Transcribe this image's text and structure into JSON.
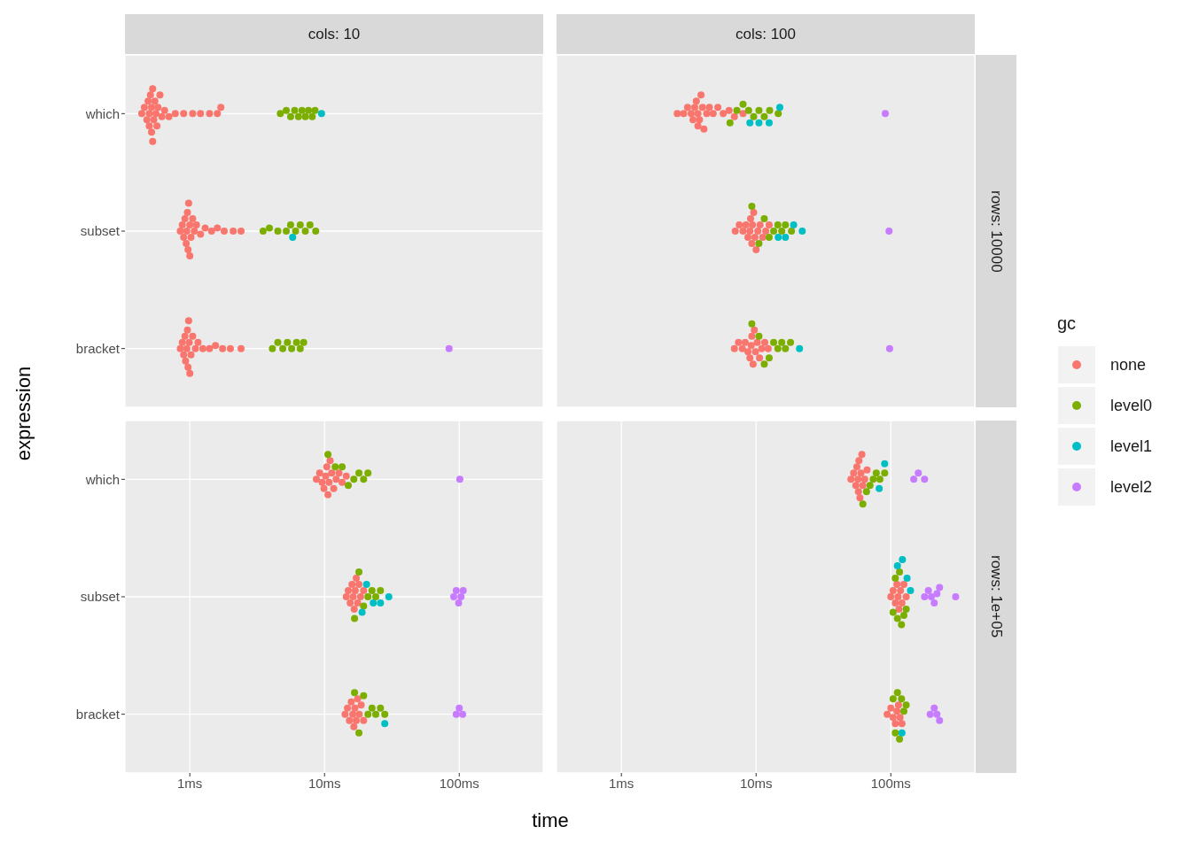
{
  "chart_data": [
    {
      "type": "scatter",
      "title": "cols: 10",
      "ylabel": "expression",
      "legend": "right",
      "legend_title": "gc",
      "orientation": "horizontal",
      "categories": [
        "which",
        "subset",
        "bracket"
      ],
      "log": "x",
      "xlim": [
        0.33,
        420
      ],
      "xticks": [
        {
          "value": 1,
          "label": null
        },
        {
          "value": 10,
          "label": null
        },
        {
          "value": 100,
          "label": null
        }
      ],
      "grid": true,
      "marker": "circle",
      "tick_labels": "y",
      "series": [
        {
          "name": "none",
          "color": "#f8766d",
          "x": [
            "which",
            "which",
            "which",
            "which",
            "which",
            "which",
            "which",
            "which",
            "which",
            "which",
            "which",
            "which",
            "which",
            "which",
            "which",
            "which",
            "which",
            "which",
            "which",
            "which",
            "which",
            "which",
            "which",
            "which",
            "which",
            "which",
            "which",
            "subset",
            "subset",
            "subset",
            "subset",
            "subset",
            "subset",
            "subset",
            "subset",
            "subset",
            "subset",
            "subset",
            "subset",
            "subset",
            "subset",
            "subset",
            "subset",
            "subset",
            "subset",
            "subset",
            "subset",
            "subset",
            "subset",
            "bracket",
            "bracket",
            "bracket",
            "bracket",
            "bracket",
            "bracket",
            "bracket",
            "bracket",
            "bracket",
            "bracket",
            "bracket",
            "bracket",
            "bracket",
            "bracket",
            "bracket",
            "bracket",
            "bracket",
            "bracket",
            "bracket",
            "bracket",
            "bracket"
          ],
          "values": [
            0.44,
            0.46,
            0.48,
            0.49,
            0.5,
            0.5,
            0.51,
            0.52,
            0.52,
            0.53,
            0.53,
            0.54,
            0.55,
            0.56,
            0.57,
            0.58,
            0.6,
            0.62,
            0.65,
            0.7,
            0.78,
            0.9,
            1.05,
            1.2,
            1.4,
            1.6,
            1.7,
            0.85,
            0.88,
            0.9,
            0.92,
            0.94,
            0.95,
            0.96,
            0.97,
            0.98,
            1,
            1,
            1.02,
            1.05,
            1.08,
            1.12,
            1.2,
            1.3,
            1.45,
            1.6,
            1.8,
            2.1,
            2.4,
            0.85,
            0.88,
            0.9,
            0.92,
            0.93,
            0.95,
            0.96,
            0.97,
            0.98,
            0.99,
            1,
            1.02,
            1.05,
            1.1,
            1.15,
            1.25,
            1.4,
            1.55,
            1.75,
            2,
            2.4
          ]
        },
        {
          "name": "level0",
          "color": "#7cae00",
          "x": [
            "which",
            "which",
            "which",
            "which",
            "which",
            "which",
            "which",
            "which",
            "which",
            "which",
            "subset",
            "subset",
            "subset",
            "subset",
            "subset",
            "subset",
            "subset",
            "subset",
            "subset",
            "subset",
            "bracket",
            "bracket",
            "bracket",
            "bracket",
            "bracket",
            "bracket",
            "bracket",
            "bracket"
          ],
          "values": [
            4.7,
            5.2,
            5.6,
            6,
            6.4,
            6.8,
            7.2,
            7.6,
            8.1,
            8.5,
            3.5,
            3.9,
            4.5,
            5.2,
            5.6,
            6.1,
            6.6,
            7.2,
            7.8,
            8.6,
            4.1,
            4.5,
            4.9,
            5.3,
            5.7,
            6.2,
            6.6,
            7
          ]
        },
        {
          "name": "level1",
          "color": "#00bfc4",
          "x": [
            "which",
            "subset"
          ],
          "values": [
            9.5,
            5.8
          ]
        },
        {
          "name": "level2",
          "color": "#c77cff",
          "x": [
            "bracket"
          ],
          "values": [
            84
          ]
        }
      ]
    },
    {
      "type": "scatter",
      "title": "cols: 100",
      "annotations": [
        "rows: 10000"
      ],
      "orientation": "horizontal",
      "categories": [
        "which",
        "subset",
        "bracket"
      ],
      "log": "x",
      "xlim": [
        0.33,
        420
      ],
      "xticks": [
        {
          "value": 1,
          "label": null
        },
        {
          "value": 10,
          "label": null
        },
        {
          "value": 100,
          "label": null
        }
      ],
      "grid": true,
      "marker": "circle",
      "tick_labels": false,
      "series": [
        {
          "color": "#f8766d",
          "x": [
            "which",
            "which",
            "which",
            "which",
            "which",
            "which",
            "which",
            "which",
            "which",
            "which",
            "which",
            "which",
            "which",
            "which",
            "which",
            "which",
            "which",
            "which",
            "which",
            "which",
            "which",
            "subset",
            "subset",
            "subset",
            "subset",
            "subset",
            "subset",
            "subset",
            "subset",
            "subset",
            "subset",
            "subset",
            "subset",
            "subset",
            "subset",
            "subset",
            "subset",
            "subset",
            "bracket",
            "bracket",
            "bracket",
            "bracket",
            "bracket",
            "bracket",
            "bracket",
            "bracket",
            "bracket",
            "bracket",
            "bracket",
            "bracket",
            "bracket",
            "bracket",
            "bracket",
            "bracket"
          ],
          "values": [
            2.6,
            2.9,
            3.1,
            3.3,
            3.4,
            3.5,
            3.6,
            3.7,
            3.7,
            3.8,
            3.9,
            4,
            4.1,
            4.3,
            4.5,
            4.8,
            5.2,
            5.7,
            6.3,
            6.9,
            8,
            7,
            7.5,
            8,
            8.4,
            8.7,
            9,
            9.1,
            9.3,
            9.4,
            9.6,
            9.8,
            10,
            10.3,
            10.7,
            11.2,
            11.8,
            12.5,
            6.9,
            7.4,
            7.9,
            8.3,
            8.7,
            9,
            9.2,
            9.3,
            9.5,
            9.7,
            9.9,
            10.2,
            10.6,
            11,
            11.6,
            12.3
          ]
        },
        {
          "color": "#7cae00",
          "x": [
            "which",
            "which",
            "which",
            "which",
            "which",
            "which",
            "which",
            "which",
            "which",
            "subset",
            "subset",
            "subset",
            "subset",
            "subset",
            "subset",
            "subset",
            "subset",
            "subset",
            "bracket",
            "bracket",
            "bracket",
            "bracket",
            "bracket",
            "bracket",
            "bracket",
            "bracket",
            "bracket"
          ],
          "values": [
            6.4,
            7.2,
            8,
            8.8,
            9.6,
            10.5,
            11.5,
            12.6,
            14.6,
            9.3,
            10.5,
            11.5,
            12.5,
            13.5,
            14.5,
            15.5,
            16.5,
            18.3,
            9.3,
            10.5,
            11.5,
            12.5,
            13.5,
            14.5,
            15.5,
            16.5,
            18
          ]
        },
        {
          "color": "#00bfc4",
          "x": [
            "which",
            "which",
            "which",
            "which",
            "subset",
            "subset",
            "subset",
            "subset",
            "bracket"
          ],
          "values": [
            9,
            10.5,
            12.5,
            15,
            14.6,
            16.5,
            19,
            22,
            21
          ]
        },
        {
          "color": "#c77cff",
          "x": [
            "which",
            "subset",
            "bracket"
          ],
          "values": [
            91,
            97,
            98
          ]
        }
      ]
    },
    {
      "type": "scatter",
      "xlabel": "time",
      "orientation": "horizontal",
      "categories": [
        "which",
        "subset",
        "bracket"
      ],
      "log": "x",
      "xlim": [
        0.33,
        420
      ],
      "xticks": [
        {
          "value": 1,
          "label": "1ms"
        },
        {
          "value": 10,
          "label": "10ms"
        },
        {
          "value": 100,
          "label": "100ms"
        }
      ],
      "grid": true,
      "marker": "circle",
      "series": [
        {
          "color": "#f8766d",
          "x": [
            "which",
            "which",
            "which",
            "which",
            "which",
            "which",
            "which",
            "which",
            "which",
            "which",
            "which",
            "which",
            "which",
            "which",
            "which",
            "subset",
            "subset",
            "subset",
            "subset",
            "subset",
            "subset",
            "subset",
            "subset",
            "subset",
            "subset",
            "subset",
            "subset",
            "bracket",
            "bracket",
            "bracket",
            "bracket",
            "bracket",
            "bracket",
            "bracket",
            "bracket",
            "bracket",
            "bracket",
            "bracket",
            "bracket"
          ],
          "values": [
            8.7,
            9.2,
            9.6,
            9.9,
            10.2,
            10.4,
            10.6,
            10.8,
            11,
            11.3,
            11.7,
            12.2,
            12.8,
            13.5,
            14.5,
            14.5,
            15,
            15.5,
            16,
            16.3,
            16.6,
            16.9,
            17.2,
            17.6,
            18,
            18.5,
            19.5,
            14.2,
            14.8,
            15.3,
            15.8,
            16.2,
            16.5,
            16.8,
            17.2,
            17.6,
            18.1,
            18.7,
            19.5
          ]
        },
        {
          "color": "#7cae00",
          "x": [
            "which",
            "which",
            "which",
            "which",
            "which",
            "which",
            "which",
            "which",
            "subset",
            "subset",
            "subset",
            "subset",
            "subset",
            "subset",
            "subset",
            "bracket",
            "bracket",
            "bracket",
            "bracket",
            "bracket",
            "bracket",
            "bracket",
            "bracket"
          ],
          "values": [
            10.6,
            12,
            13.5,
            15,
            16.5,
            18,
            19.5,
            21,
            16.7,
            18,
            19.5,
            21,
            22.5,
            24,
            26,
            16.7,
            18,
            19.5,
            21,
            22.5,
            24,
            26,
            28
          ]
        },
        {
          "color": "#00bfc4",
          "x": [
            "subset",
            "subset",
            "subset",
            "subset",
            "subset",
            "bracket"
          ],
          "values": [
            19,
            20.5,
            23,
            26,
            30,
            28
          ]
        },
        {
          "color": "#c77cff",
          "x": [
            "which",
            "subset",
            "subset",
            "subset",
            "subset",
            "subset",
            "bracket",
            "bracket",
            "bracket"
          ],
          "values": [
            101,
            91,
            95,
            99,
            103,
            107,
            95,
            100,
            106
          ]
        }
      ]
    },
    {
      "type": "scatter",
      "annotations": [
        "rows: 1e+05"
      ],
      "orientation": "horizontal",
      "categories": [
        "which",
        "subset",
        "bracket"
      ],
      "log": "x",
      "xlim": [
        0.33,
        420
      ],
      "xticks": [
        {
          "value": 1,
          "label": "1ms"
        },
        {
          "value": 10,
          "label": "10ms"
        },
        {
          "value": 100,
          "label": "100ms"
        }
      ],
      "grid": true,
      "marker": "circle",
      "tick_labels": "x",
      "series": [
        {
          "color": "#f8766d",
          "x": [
            "which",
            "which",
            "which",
            "which",
            "which",
            "which",
            "which",
            "which",
            "which",
            "which",
            "which",
            "which",
            "which",
            "subset",
            "subset",
            "subset",
            "subset",
            "subset",
            "subset",
            "subset",
            "subset",
            "subset",
            "subset",
            "bracket",
            "bracket",
            "bracket",
            "bracket",
            "bracket",
            "bracket",
            "bracket",
            "bracket"
          ],
          "values": [
            50.6,
            53,
            55,
            56,
            57,
            57.5,
            58,
            59,
            60,
            61,
            62,
            64,
            66.6,
            100,
            104,
            108,
            111,
            113,
            115,
            118,
            121,
            125,
            130,
            94,
            100,
            104,
            108,
            111,
            114,
            117,
            121
          ]
        },
        {
          "color": "#7cae00",
          "x": [
            "which",
            "which",
            "which",
            "which",
            "which",
            "which",
            "which",
            "subset",
            "subset",
            "subset",
            "subset",
            "subset",
            "subset",
            "subset",
            "bracket",
            "bracket",
            "bracket",
            "bracket",
            "bracket",
            "bracket",
            "bracket"
          ],
          "values": [
            62,
            66,
            70,
            74,
            78,
            83,
            90,
            104,
            108,
            112,
            116,
            120,
            125,
            130,
            104,
            108,
            112,
            116,
            120,
            125,
            130
          ]
        },
        {
          "color": "#00bfc4",
          "x": [
            "which",
            "which",
            "subset",
            "subset",
            "subset",
            "subset",
            "bracket"
          ],
          "values": [
            82,
            90,
            112,
            122,
            132,
            140,
            121
          ]
        },
        {
          "color": "#c77cff",
          "x": [
            "which",
            "which",
            "which",
            "subset",
            "subset",
            "subset",
            "subset",
            "subset",
            "subset",
            "subset",
            "bracket",
            "bracket",
            "bracket",
            "bracket"
          ],
          "values": [
            148,
            160,
            178,
            178,
            190,
            200,
            210,
            220,
            230,
            303,
            196,
            210,
            220,
            230
          ]
        }
      ]
    }
  ]
}
